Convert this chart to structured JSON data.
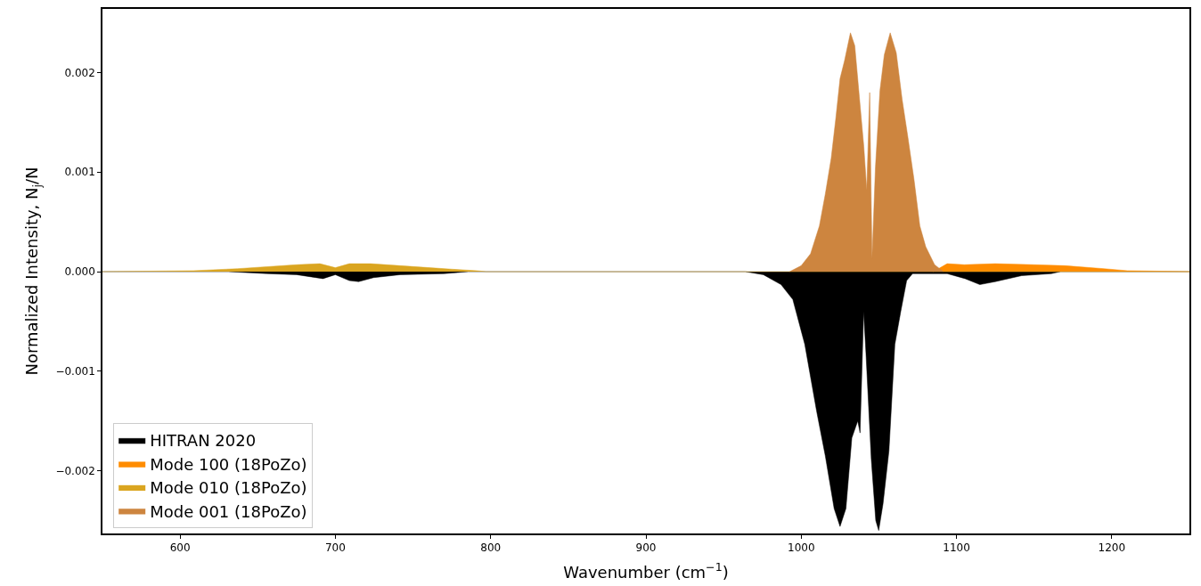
{
  "chart_data": {
    "type": "area",
    "xlabel": "Wavenumber (cm$^{−1}$)",
    "ylabel": "Normalized Intensity, N$_{j}$/N",
    "xlim": [
      550,
      1250
    ],
    "xticks": [
      600,
      700,
      800,
      900,
      1000,
      1100,
      1200
    ],
    "ylim": [
      -0.00263,
      0.00264
    ],
    "yticks": [
      {
        "value": -0.002,
        "label": "−0.002"
      },
      {
        "value": -0.001,
        "label": "−0.001"
      },
      {
        "value": 0,
        "label": "0.000"
      },
      {
        "value": 0.001,
        "label": "0.001"
      },
      {
        "value": 0.002,
        "label": "0.002"
      }
    ],
    "legend": "bottom left",
    "series": [
      {
        "name": "HITRAN 2020",
        "color": "#000000",
        "x": [
          550,
          631,
          656,
          675,
          692,
          700,
          709,
          715,
          724.6,
          741.7,
          770,
          785.6,
          964,
          975.6,
          987,
          994.6,
          1002.3,
          1009.9,
          1015.5,
          1021.2,
          1025,
          1028.8,
          1032.6,
          1036.4,
          1037.9,
          1040.2,
          1041.7,
          1045.1,
          1048,
          1049.9,
          1052.7,
          1056.5,
          1060.3,
          1064.1,
          1067.9,
          1071.7,
          1094,
          1105.6,
          1115,
          1125,
          1142,
          1161,
          1167,
          1250
        ],
        "values": [
          0,
          0,
          -2e-05,
          -3e-05,
          -7e-05,
          -3e-05,
          -9e-05,
          -0.0001,
          -6e-05,
          -3e-05,
          -2e-05,
          0,
          0,
          -3e-05,
          -0.00013,
          -0.00028,
          -0.00073,
          -0.0014,
          -0.00185,
          -0.00238,
          -0.00256,
          -0.00238,
          -0.00167,
          -0.0015,
          -0.00162,
          -0.0004,
          -0.00082,
          -0.00188,
          -0.0025,
          -0.0026,
          -0.00233,
          -0.0018,
          -0.00073,
          -0.0004,
          -9e-05,
          -2e-05,
          -2e-05,
          -7e-05,
          -0.00013,
          -0.0001,
          -4e-05,
          -2e-05,
          0,
          0
        ]
      },
      {
        "name": "Mode 100 (18PoZo)",
        "color": "#ff8c00",
        "x": [
          1085,
          1094,
          1105,
          1125,
          1150,
          1170,
          1195,
          1210,
          1250
        ],
        "values": [
          0,
          8e-05,
          7e-05,
          8e-05,
          7e-05,
          6e-05,
          3e-05,
          1e-05,
          0
        ]
      },
      {
        "name": "Mode 010 (18PoZo)",
        "color": "#daa520",
        "x": [
          550,
          608.6,
          637,
          656,
          675,
          690,
          700,
          709,
          722.7,
          741.7,
          760.6,
          779.8,
          791,
          797,
          1250
        ],
        "values": [
          0,
          1e-05,
          3e-05,
          5e-05,
          7e-05,
          8e-05,
          4e-05,
          8e-05,
          8e-05,
          6e-05,
          4e-05,
          2e-05,
          1e-05,
          0,
          0
        ]
      },
      {
        "name": "Mode 001 (18PoZo)",
        "color": "#cd853f",
        "x": [
          992.5,
          1000,
          1006,
          1011.7,
          1015.5,
          1019.3,
          1022.2,
          1025,
          1027.9,
          1031.7,
          1034.5,
          1037.4,
          1040.3,
          1042.2,
          1044.1,
          1045.6,
          1047.8,
          1050.7,
          1053.5,
          1057.3,
          1061.2,
          1065,
          1068.7,
          1072.6,
          1076.4,
          1080.2,
          1085.9,
          1091.6
        ],
        "values": [
          0,
          6e-05,
          0.00018,
          0.00046,
          0.00078,
          0.00114,
          0.00153,
          0.00194,
          0.00212,
          0.0024,
          0.00227,
          0.00176,
          0.00126,
          0.00082,
          0.0018,
          0.00013,
          0.00105,
          0.00182,
          0.00218,
          0.0024,
          0.0022,
          0.00173,
          0.00135,
          0.00093,
          0.00046,
          0.00025,
          7e-05,
          0
        ]
      }
    ]
  }
}
